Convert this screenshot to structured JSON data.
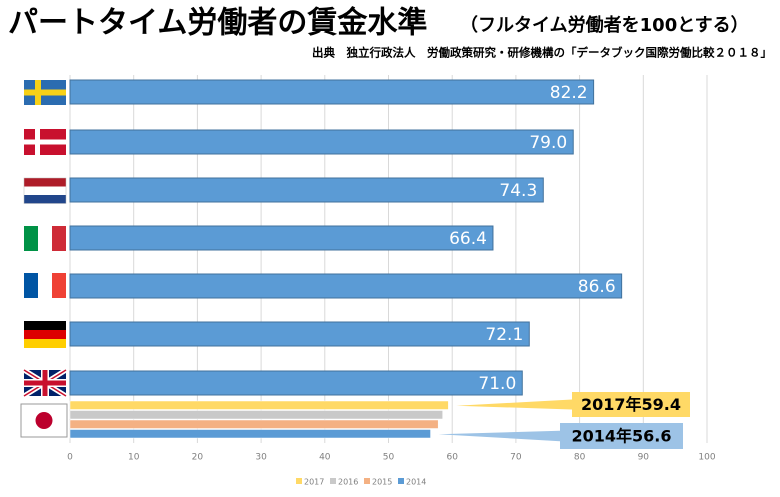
{
  "chart_data": {
    "type": "bar",
    "orientation": "horizontal",
    "title": "パートタイム労働者の賃金水準",
    "subtitle": "（フルタイム労働者を100とする）",
    "source": "出典　独立行政法人　労働政策研究・研修機構の「データブック国際労働比較２０１８」",
    "categories": [
      null,
      null,
      null,
      null,
      null,
      null,
      null,
      null
    ],
    "series": [
      {
        "name": "2017",
        "color": "#ffd966",
        "values": [
          null,
          null,
          null,
          null,
          null,
          null,
          null,
          59.4
        ]
      },
      {
        "name": "2016",
        "color": "#c9c9c9",
        "values": [
          null,
          null,
          null,
          null,
          null,
          null,
          null,
          58.5
        ]
      },
      {
        "name": "2015",
        "color": "#f4b183",
        "values": [
          null,
          null,
          null,
          null,
          null,
          null,
          null,
          57.8
        ]
      },
      {
        "name": "2014",
        "color": "#5b9bd5",
        "values": [
          82.2,
          79.0,
          74.3,
          66.4,
          86.6,
          72.1,
          71.0,
          56.6
        ],
        "value_labels": [
          "82.2",
          "79.0",
          "74.3",
          "66.4",
          "86.6",
          "72.1",
          "71.0",
          null
        ]
      }
    ],
    "annotations": [
      {
        "text": "2017年59.4"
      },
      {
        "text": "2014年56.6"
      }
    ],
    "xlim": [
      0,
      100
    ],
    "xticks": [
      0,
      10,
      20,
      30,
      40,
      50,
      60,
      70,
      80,
      90,
      100
    ],
    "grid": true,
    "legend": "bottom"
  }
}
